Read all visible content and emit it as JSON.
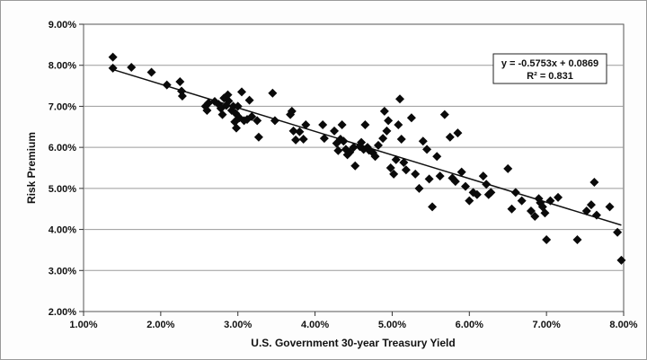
{
  "chart_data": {
    "type": "scatter",
    "xlabel": "U.S. Government 30-year Treasury Yield",
    "ylabel": "Risk Premium",
    "xlim": [
      0.01,
      0.08
    ],
    "ylim": [
      0.02,
      0.09
    ],
    "x_ticks": [
      "1.00%",
      "2.00%",
      "3.00%",
      "4.00%",
      "5.00%",
      "6.00%",
      "7.00%",
      "8.00%"
    ],
    "y_ticks": [
      "2.00%",
      "3.00%",
      "4.00%",
      "5.00%",
      "6.00%",
      "7.00%",
      "8.00%",
      "9.00%"
    ],
    "grid": "horizontal",
    "marker": "diamond",
    "trendline": {
      "type": "linear",
      "slope": -0.5753,
      "intercept": 0.0869,
      "equation": "y = -0.5753x + 0.0869",
      "r_squared": "R² = 0.831"
    },
    "points": [
      [
        0.0138,
        0.082
      ],
      [
        0.0138,
        0.0793
      ],
      [
        0.0162,
        0.0795
      ],
      [
        0.0188,
        0.0783
      ],
      [
        0.0208,
        0.0752
      ],
      [
        0.0225,
        0.076
      ],
      [
        0.0227,
        0.0737
      ],
      [
        0.0228,
        0.0725
      ],
      [
        0.0258,
        0.07
      ],
      [
        0.026,
        0.069
      ],
      [
        0.0262,
        0.0708
      ],
      [
        0.027,
        0.0712
      ],
      [
        0.0275,
        0.0705
      ],
      [
        0.0278,
        0.0695
      ],
      [
        0.028,
        0.068
      ],
      [
        0.0282,
        0.072
      ],
      [
        0.0285,
        0.0702
      ],
      [
        0.0287,
        0.0728
      ],
      [
        0.0288,
        0.0713
      ],
      [
        0.0292,
        0.069
      ],
      [
        0.0294,
        0.07
      ],
      [
        0.0296,
        0.0662
      ],
      [
        0.0297,
        0.0683
      ],
      [
        0.0298,
        0.0647
      ],
      [
        0.03,
        0.07
      ],
      [
        0.0302,
        0.0672
      ],
      [
        0.0305,
        0.0735
      ],
      [
        0.0308,
        0.0665
      ],
      [
        0.0312,
        0.0668
      ],
      [
        0.0315,
        0.0715
      ],
      [
        0.0318,
        0.0675
      ],
      [
        0.0325,
        0.0665
      ],
      [
        0.0327,
        0.0625
      ],
      [
        0.0345,
        0.0732
      ],
      [
        0.0348,
        0.0665
      ],
      [
        0.0368,
        0.068
      ],
      [
        0.037,
        0.0688
      ],
      [
        0.0372,
        0.064
      ],
      [
        0.0375,
        0.0618
      ],
      [
        0.038,
        0.0638
      ],
      [
        0.0385,
        0.062
      ],
      [
        0.0388,
        0.0655
      ],
      [
        0.041,
        0.0655
      ],
      [
        0.0412,
        0.0622
      ],
      [
        0.0425,
        0.064
      ],
      [
        0.0428,
        0.061
      ],
      [
        0.043,
        0.0592
      ],
      [
        0.0433,
        0.062
      ],
      [
        0.0435,
        0.0655
      ],
      [
        0.0437,
        0.0615
      ],
      [
        0.044,
        0.0595
      ],
      [
        0.0442,
        0.0582
      ],
      [
        0.0445,
        0.0588
      ],
      [
        0.045,
        0.06
      ],
      [
        0.0452,
        0.0555
      ],
      [
        0.0458,
        0.0602
      ],
      [
        0.046,
        0.0612
      ],
      [
        0.0463,
        0.0595
      ],
      [
        0.0465,
        0.0655
      ],
      [
        0.0468,
        0.06
      ],
      [
        0.047,
        0.0593
      ],
      [
        0.0475,
        0.0587
      ],
      [
        0.0478,
        0.0578
      ],
      [
        0.0482,
        0.0605
      ],
      [
        0.0488,
        0.0622
      ],
      [
        0.049,
        0.0688
      ],
      [
        0.0493,
        0.064
      ],
      [
        0.0495,
        0.0665
      ],
      [
        0.0498,
        0.055
      ],
      [
        0.0502,
        0.0535
      ],
      [
        0.0505,
        0.057
      ],
      [
        0.0508,
        0.0655
      ],
      [
        0.051,
        0.0718
      ],
      [
        0.0512,
        0.062
      ],
      [
        0.0515,
        0.0563
      ],
      [
        0.0518,
        0.0545
      ],
      [
        0.0525,
        0.0672
      ],
      [
        0.053,
        0.0535
      ],
      [
        0.0535,
        0.05
      ],
      [
        0.054,
        0.0615
      ],
      [
        0.0545,
        0.0595
      ],
      [
        0.0548,
        0.0523
      ],
      [
        0.0552,
        0.0455
      ],
      [
        0.0558,
        0.0578
      ],
      [
        0.0562,
        0.053
      ],
      [
        0.0568,
        0.068
      ],
      [
        0.0575,
        0.0625
      ],
      [
        0.0578,
        0.0525
      ],
      [
        0.0582,
        0.0517
      ],
      [
        0.0585,
        0.0635
      ],
      [
        0.059,
        0.054
      ],
      [
        0.0595,
        0.0505
      ],
      [
        0.06,
        0.047
      ],
      [
        0.0605,
        0.049
      ],
      [
        0.061,
        0.0485
      ],
      [
        0.0618,
        0.053
      ],
      [
        0.0622,
        0.051
      ],
      [
        0.0625,
        0.0485
      ],
      [
        0.0628,
        0.049
      ],
      [
        0.065,
        0.0548
      ],
      [
        0.0655,
        0.045
      ],
      [
        0.066,
        0.049
      ],
      [
        0.0668,
        0.047
      ],
      [
        0.068,
        0.0445
      ],
      [
        0.0685,
        0.0432
      ],
      [
        0.069,
        0.0475
      ],
      [
        0.0692,
        0.0465
      ],
      [
        0.0695,
        0.0455
      ],
      [
        0.0698,
        0.044
      ],
      [
        0.07,
        0.0375
      ],
      [
        0.0705,
        0.047
      ],
      [
        0.0715,
        0.0478
      ],
      [
        0.074,
        0.0375
      ],
      [
        0.0752,
        0.0445
      ],
      [
        0.0758,
        0.046
      ],
      [
        0.0762,
        0.0515
      ],
      [
        0.0765,
        0.0435
      ],
      [
        0.0782,
        0.0455
      ],
      [
        0.0792,
        0.0393
      ],
      [
        0.0797,
        0.0325
      ]
    ]
  }
}
